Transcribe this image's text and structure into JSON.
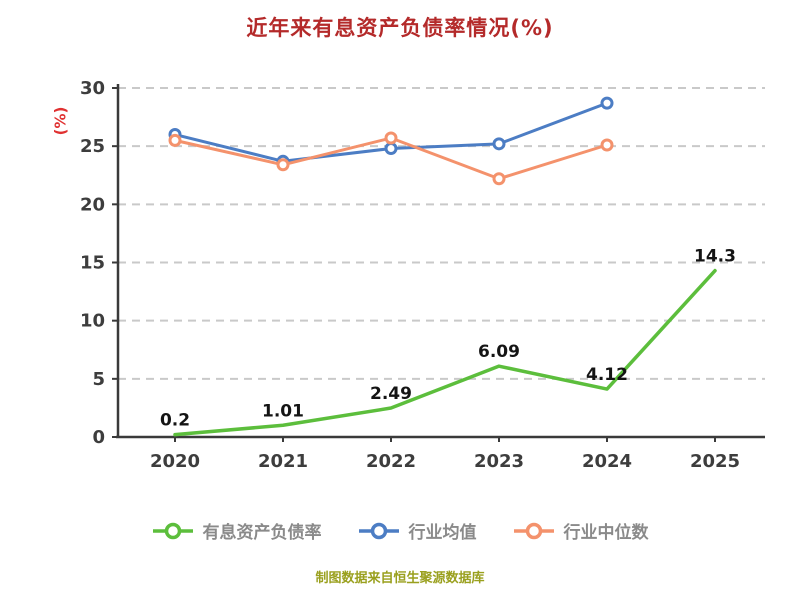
{
  "chart_data": {
    "type": "line",
    "title": "近年来有息资产负债率情况(%)",
    "ylabel": "(%)",
    "source": "制图数据来自恒生聚源数据库",
    "categories": [
      "2020",
      "2021",
      "2022",
      "2023",
      "2024",
      "2025"
    ],
    "ylim": [
      0,
      30
    ],
    "yticks": [
      0,
      5,
      10,
      15,
      20,
      25,
      30
    ],
    "grid": "horizontal-dashed",
    "legend_position": "bottom",
    "series": [
      {
        "name": "有息资产负债率",
        "color": "#5cbe3c",
        "values": [
          0.2,
          1.01,
          2.49,
          6.09,
          4.12,
          14.3
        ],
        "point_labels": [
          "0.2",
          "1.01",
          "2.49",
          "6.09",
          "4.12",
          "14.3"
        ],
        "show_point_labels": true,
        "show_markers": false
      },
      {
        "name": "行业均值",
        "color": "#4c7dc4",
        "values": [
          26.0,
          23.7,
          24.8,
          25.2,
          28.7,
          null
        ],
        "show_point_labels": false,
        "show_markers": true
      },
      {
        "name": "行业中位数",
        "color": "#f4926c",
        "values": [
          25.5,
          23.4,
          25.7,
          22.2,
          25.1,
          null
        ],
        "show_point_labels": false,
        "show_markers": true
      }
    ],
    "style_colors": {
      "title": "#b42a2a",
      "ylabel": "#e03131",
      "axis": "#3a3a3a",
      "gridline": "#c9c9c9",
      "tick_label": "#3d3d3d",
      "point_label": "#141414",
      "legend_text": "#8a8a8a",
      "source_text": "#9aa01e"
    }
  }
}
